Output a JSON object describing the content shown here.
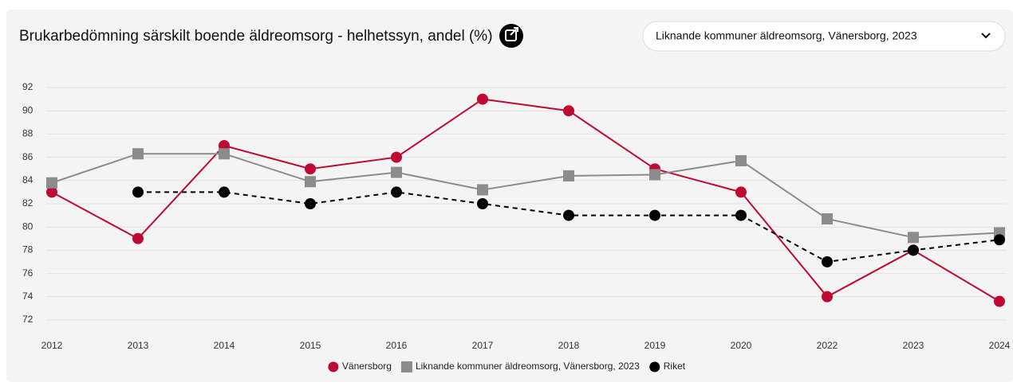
{
  "chart_data": {
    "type": "line",
    "title": "Brukarbedömning särskilt boende äldreomsorg - helhetssyn, andel (%)",
    "categories": [
      "2012",
      "2013",
      "2014",
      "2015",
      "2016",
      "2017",
      "2018",
      "2019",
      "2020",
      "2022",
      "2023",
      "2024"
    ],
    "series": [
      {
        "name": "Vänersborg",
        "color": "#be0a32",
        "marker": "circle",
        "dashed": false,
        "values": [
          83,
          79,
          87,
          85,
          86,
          91,
          90,
          85,
          83,
          74,
          78,
          73.6
        ]
      },
      {
        "name": "Liknande kommuner äldreomsorg, Vänersborg, 2023",
        "color": "#8c8c8c",
        "marker": "square",
        "dashed": false,
        "values": [
          83.8,
          86.3,
          86.3,
          83.9,
          84.7,
          83.2,
          84.4,
          84.5,
          85.7,
          80.7,
          79.1,
          79.5
        ]
      },
      {
        "name": "Riket",
        "color": "#000000",
        "marker": "circle",
        "dashed": true,
        "values": [
          null,
          83,
          83,
          82,
          83,
          82,
          81,
          81,
          81,
          77,
          78,
          78.9
        ]
      }
    ],
    "ylim": [
      72,
      92
    ],
    "yticks": [
      72,
      74,
      76,
      78,
      80,
      82,
      84,
      86,
      88,
      90,
      92
    ],
    "grid": true
  },
  "dropdown": {
    "selected": "Liknande kommuner äldreomsorg, Vänersborg, 2023"
  }
}
